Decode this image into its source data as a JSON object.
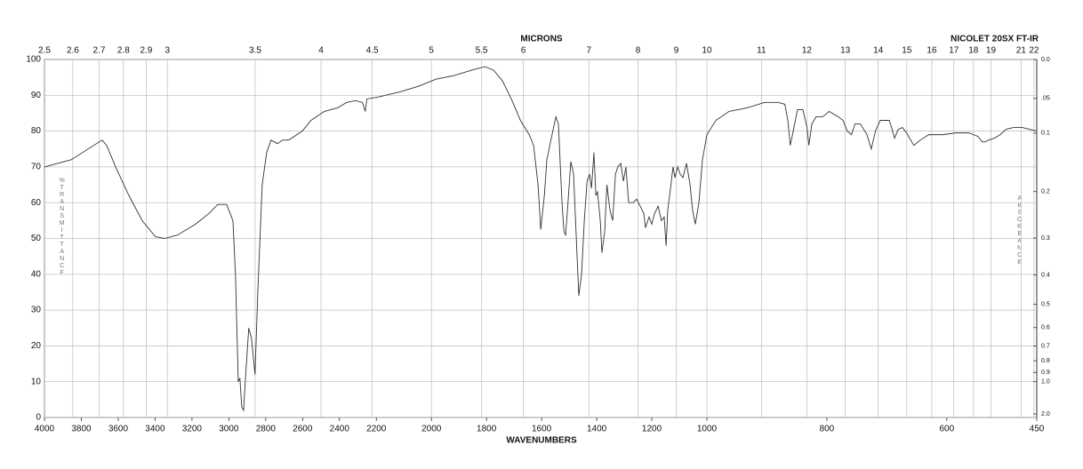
{
  "chart_data": {
    "type": "line",
    "title": "NICOLET 20SX FT-IR",
    "x2_label": "MICRONS",
    "x_label": "WAVENUMBERS",
    "y_label": "%TRANSMITTANCE",
    "y2_label": "ABSORBANCE",
    "color": "#333333",
    "grid": true,
    "xlim": [
      4000,
      450
    ],
    "xscale_breaks": [
      4000,
      2200,
      1000,
      450
    ],
    "xticks": [
      4000,
      3800,
      3600,
      3400,
      3200,
      3000,
      2800,
      2600,
      2400,
      2200,
      2000,
      1800,
      1600,
      1400,
      1200,
      1000,
      800,
      600,
      450
    ],
    "x2ticks": [
      2.5,
      2.6,
      2.7,
      2.8,
      2.9,
      3,
      3.5,
      4,
      4.5,
      5,
      5.5,
      6,
      7,
      8,
      9,
      10,
      11,
      12,
      13,
      14,
      15,
      16,
      17,
      18,
      19,
      21,
      22
    ],
    "ylim": [
      0,
      100
    ],
    "yticks": [
      0,
      10,
      20,
      30,
      40,
      50,
      60,
      70,
      80,
      90,
      100
    ],
    "y2ticks": [
      {
        "value": 0,
        "label": "0.0"
      },
      {
        "value": 0.05,
        "label": ".05"
      },
      0.1,
      0.2,
      0.3,
      0.4,
      0.5,
      0.6,
      0.7,
      0.8,
      0.9,
      {
        "value": 1,
        "label": "1.0"
      },
      {
        "value": 2,
        "label": "2.0"
      }
    ],
    "x": [
      4000,
      3855,
      3687,
      3663,
      3614,
      3542,
      3470,
      3398,
      3349,
      3277,
      3181,
      3108,
      3060,
      3012,
      2978,
      2964,
      2954,
      2949,
      2940,
      2930,
      2920,
      2911,
      2892,
      2877,
      2858,
      2843,
      2819,
      2795,
      2771,
      2737,
      2708,
      2675,
      2602,
      2554,
      2482,
      2410,
      2361,
      2313,
      2275,
      2260,
      2251,
      2194,
      2113,
      2048,
      1984,
      1919,
      1855,
      1806,
      1774,
      1742,
      1710,
      1677,
      1645,
      1629,
      1613,
      1603,
      1590,
      1581,
      1565,
      1548,
      1539,
      1526,
      1519,
      1513,
      1506,
      1494,
      1484,
      1474,
      1465,
      1455,
      1445,
      1435,
      1426,
      1419,
      1410,
      1403,
      1397,
      1387,
      1381,
      1371,
      1363,
      1352,
      1342,
      1332,
      1323,
      1313,
      1303,
      1294,
      1284,
      1268,
      1255,
      1242,
      1229,
      1223,
      1210,
      1200,
      1190,
      1177,
      1165,
      1155,
      1148,
      1142,
      1132,
      1123,
      1116,
      1106,
      1097,
      1087,
      1074,
      1061,
      1052,
      1042,
      1029,
      1016,
      1000,
      985,
      963,
      933,
      904,
      881,
      870,
      865,
      861,
      856,
      849,
      840,
      833,
      830,
      825,
      818,
      807,
      796,
      781,
      773,
      766,
      759,
      753,
      744,
      733,
      726,
      719,
      711,
      696,
      692,
      687,
      681,
      674,
      667,
      655,
      644,
      630,
      607,
      585,
      563,
      548,
      541,
      536,
      530,
      521,
      511,
      501,
      489,
      474,
      450
    ],
    "values": [
      70,
      72,
      77.5,
      76,
      70,
      62,
      55,
      50.5,
      50,
      51,
      54,
      57,
      59.5,
      59.5,
      55,
      40,
      20,
      10,
      11,
      3,
      2,
      10,
      25,
      22,
      12,
      35,
      65,
      74,
      77.5,
      76.5,
      77.5,
      77.5,
      80,
      83,
      85.5,
      86.5,
      88,
      88.5,
      88,
      85.5,
      89,
      89.5,
      91,
      92.5,
      94.5,
      95.5,
      97,
      98,
      97,
      94,
      89,
      83,
      79,
      76,
      65,
      52.5,
      62,
      72,
      78,
      84,
      82,
      60,
      52,
      51,
      58,
      71.5,
      68,
      50,
      34,
      40,
      55,
      66,
      68,
      64,
      74,
      62,
      63,
      55,
      46,
      52,
      65,
      58,
      55,
      68,
      70,
      71,
      66,
      70,
      60,
      60,
      61,
      59,
      57,
      53,
      56,
      54,
      57,
      59,
      55,
      56,
      48,
      58,
      64,
      70,
      67,
      70,
      68,
      67,
      71,
      65,
      58,
      54,
      60,
      72,
      79,
      83,
      85.5,
      86.5,
      88,
      88,
      87.5,
      83,
      76,
      80,
      86,
      86,
      81,
      76,
      82,
      84,
      84,
      85.5,
      84,
      83,
      80,
      79,
      82,
      82,
      79,
      75,
      80,
      83,
      83,
      81,
      78,
      80.5,
      81,
      79.5,
      76,
      77.5,
      79,
      79,
      79.5,
      79.5,
      78.5,
      77,
      77,
      77.5,
      78,
      79,
      80.5,
      81,
      81,
      80
    ]
  }
}
